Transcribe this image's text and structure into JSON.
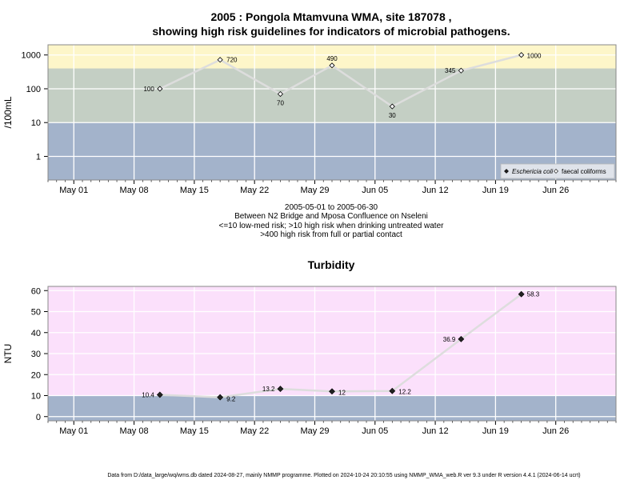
{
  "title_line1": "2005 : Pongola Mtamvuna WMA, site 187078 ,",
  "title_line2": "showing high risk guidelines for indicators of microbial pathogens.",
  "notes": [
    "2005-05-01 to 2005-06-30",
    "Between N2 Bridge and Mposa Confluence on Nseleni",
    "<=10 low-med risk; >10 high risk when drinking untreated water",
    ">400 high risk from full or partial contact"
  ],
  "footer": "Data from D:/data_large/wq/wms.db dated 2024-08-27, mainly NMMP programme. Plotted on 2024-10-24 20:10:55 using NMMP_WMA_web.R ver 9.3 under R version 4.4.1 (2024-06-14 ucrt)",
  "colors": {
    "band_low": "#a3b3cb",
    "band_mid": "#c4cfc4",
    "band_high": "#fdf6c9",
    "turb_high": "#fbe0fb",
    "turb_low": "#a3b3cb",
    "grid": "#ffffff",
    "line": "#dddddd"
  },
  "chart_data": [
    {
      "type": "line",
      "title": "",
      "ylabel": "/100mL",
      "y_scale": "log",
      "ylim": [
        0.2,
        2000
      ],
      "y_ticks": [
        "1",
        "10",
        "100",
        "1000"
      ],
      "x_ticks": [
        "May 01",
        "May 08",
        "May 15",
        "May 22",
        "May 29",
        "Jun 05",
        "Jun 12",
        "Jun 19",
        "Jun 26"
      ],
      "xlim": [
        "2005-04-28",
        "2005-07-03"
      ],
      "bands": [
        {
          "from": 0.2,
          "to": 10,
          "color": "#a3b3cb"
        },
        {
          "from": 10,
          "to": 400,
          "color": "#c4cfc4"
        },
        {
          "from": 400,
          "to": 2000,
          "color": "#fdf6c9"
        }
      ],
      "legend_position": "bottom-right",
      "series": [
        {
          "name": "Eschericia coli",
          "marker": "filled-diamond",
          "x": [],
          "y": []
        },
        {
          "name": "faecal coliforms",
          "marker": "open-diamond",
          "x": [
            "2005-05-11",
            "2005-05-18",
            "2005-05-25",
            "2005-05-31",
            "2005-06-07",
            "2005-06-15",
            "2005-06-22"
          ],
          "y": [
            100,
            720,
            70,
            490,
            30,
            345,
            1000
          ],
          "labels": [
            "100",
            "720",
            "70",
            "490",
            "30",
            "345",
            "1000"
          ]
        }
      ]
    },
    {
      "type": "line",
      "title": "Turbidity",
      "ylabel": "NTU",
      "ylim": [
        -2,
        62
      ],
      "y_ticks": [
        "0",
        "10",
        "20",
        "30",
        "40",
        "50",
        "60"
      ],
      "x_ticks": [
        "May 01",
        "May 08",
        "May 15",
        "May 22",
        "May 29",
        "Jun 05",
        "Jun 12",
        "Jun 19",
        "Jun 26"
      ],
      "xlim": [
        "2005-04-28",
        "2005-07-03"
      ],
      "bands": [
        {
          "from": -2,
          "to": 10,
          "color": "#a3b3cb"
        },
        {
          "from": 10,
          "to": 62,
          "color": "#fbe0fb"
        }
      ],
      "series": [
        {
          "name": "",
          "marker": "filled-diamond",
          "x": [
            "2005-05-11",
            "2005-05-18",
            "2005-05-25",
            "2005-05-31",
            "2005-06-07",
            "2005-06-15",
            "2005-06-22"
          ],
          "y": [
            10.4,
            9.2,
            13.2,
            12,
            12.2,
            36.9,
            58.3
          ],
          "labels": [
            "10.4",
            "9.2",
            "13.2",
            "12",
            "12.2",
            "36.9",
            "58.3"
          ]
        }
      ]
    }
  ]
}
